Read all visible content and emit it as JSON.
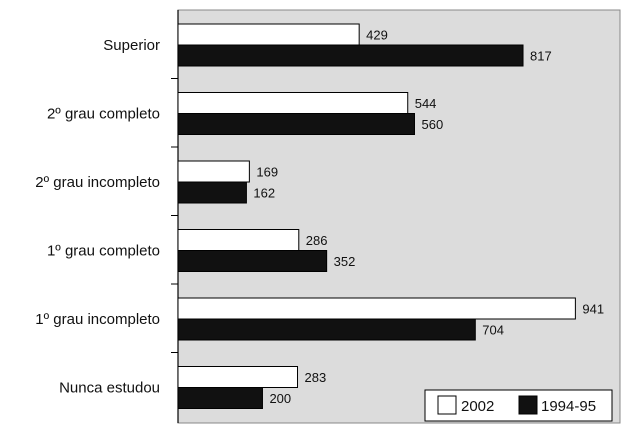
{
  "chart_data": {
    "type": "bar",
    "orientation": "horizontal",
    "categories": [
      "Superior",
      "2º grau completo",
      "2º grau incompleto",
      "1º grau completo",
      "1º grau incompleto",
      "Nunca estudou"
    ],
    "series": [
      {
        "name": "2002",
        "values": [
          429,
          544,
          169,
          286,
          941,
          283
        ],
        "color": "#ffffff"
      },
      {
        "name": "1994-95",
        "values": [
          817,
          560,
          162,
          352,
          704,
          200
        ],
        "color": "#111111"
      }
    ],
    "xlim": [
      0,
      1000
    ],
    "plot_background": "#dcdcdc",
    "grid": false,
    "legend_position": "bottom-right"
  }
}
